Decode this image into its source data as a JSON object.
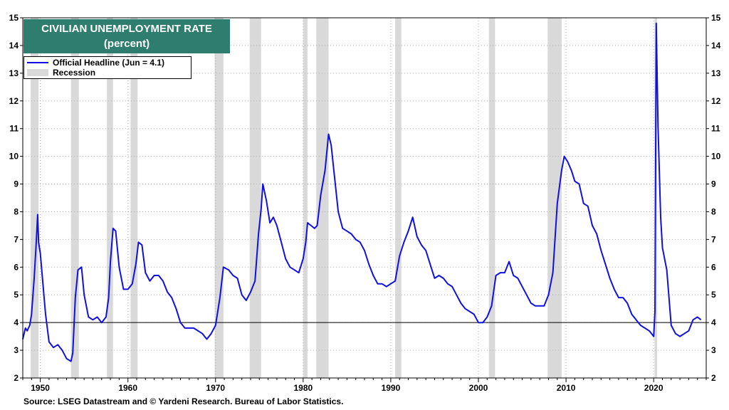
{
  "chart_data": {
    "type": "line",
    "title": "CIVILIAN UNEMPLOYMENT RATE",
    "subtitle": "(percent)",
    "source": "Source: LSEG Datastream and © Yardeni Research. Bureau of Labor Statistics.",
    "xlim": [
      1948,
      2026
    ],
    "ylim": [
      2,
      15
    ],
    "x_ticks": [
      1950,
      1960,
      1970,
      1980,
      1990,
      2000,
      2010,
      2020
    ],
    "y_ticks": [
      2,
      3,
      4,
      5,
      6,
      7,
      8,
      9,
      10,
      11,
      12,
      13,
      14,
      15
    ],
    "grid": true,
    "legend_position": "top-left",
    "reference_line": 4.0,
    "colors": {
      "series": "#1010e0",
      "recession": "#d9d9d9",
      "title_bg": "#2e7d6e",
      "reference": "#000000"
    },
    "series": [
      {
        "name": "Official Headline (Jun = 4.1)",
        "x": [
          1948.0,
          1948.3,
          1948.5,
          1948.8,
          1949.0,
          1949.3,
          1949.5,
          1949.7,
          1949.8,
          1950.0,
          1950.3,
          1950.6,
          1951.0,
          1951.5,
          1952.0,
          1952.5,
          1953.0,
          1953.5,
          1953.7,
          1954.0,
          1954.3,
          1954.7,
          1955.0,
          1955.5,
          1956.0,
          1956.5,
          1957.0,
          1957.5,
          1957.8,
          1958.0,
          1958.3,
          1958.6,
          1959.0,
          1959.5,
          1960.0,
          1960.5,
          1960.9,
          1961.2,
          1961.6,
          1962.0,
          1962.5,
          1963.0,
          1963.5,
          1964.0,
          1964.5,
          1965.0,
          1965.5,
          1966.0,
          1966.5,
          1967.0,
          1967.5,
          1968.0,
          1968.5,
          1969.0,
          1969.5,
          1970.0,
          1970.5,
          1970.9,
          1971.5,
          1972.0,
          1972.5,
          1973.0,
          1973.5,
          1974.0,
          1974.5,
          1974.9,
          1975.2,
          1975.4,
          1975.8,
          1976.2,
          1976.6,
          1977.0,
          1977.5,
          1978.0,
          1978.5,
          1979.0,
          1979.5,
          1980.0,
          1980.3,
          1980.5,
          1980.9,
          1981.3,
          1981.6,
          1982.0,
          1982.5,
          1982.9,
          1983.2,
          1983.5,
          1984.0,
          1984.5,
          1985.0,
          1985.5,
          1986.0,
          1986.5,
          1987.0,
          1987.5,
          1988.0,
          1988.5,
          1989.0,
          1989.5,
          1990.0,
          1990.5,
          1991.0,
          1991.5,
          1992.0,
          1992.5,
          1993.0,
          1993.5,
          1994.0,
          1994.5,
          1995.0,
          1995.5,
          1996.0,
          1996.5,
          1997.0,
          1997.5,
          1998.0,
          1998.5,
          1999.0,
          1999.5,
          2000.0,
          2000.5,
          2001.0,
          2001.5,
          2002.0,
          2002.5,
          2003.0,
          2003.5,
          2004.0,
          2004.5,
          2005.0,
          2005.5,
          2006.0,
          2006.5,
          2007.0,
          2007.5,
          2008.0,
          2008.5,
          2009.0,
          2009.5,
          2009.8,
          2010.2,
          2010.6,
          2011.0,
          2011.5,
          2012.0,
          2012.5,
          2013.0,
          2013.5,
          2014.0,
          2014.5,
          2015.0,
          2015.5,
          2016.0,
          2016.5,
          2017.0,
          2017.5,
          2018.0,
          2018.5,
          2019.0,
          2019.5,
          2020.0,
          2020.15,
          2020.3,
          2020.5,
          2020.8,
          2021.0,
          2021.5,
          2022.0,
          2022.5,
          2023.0,
          2023.5,
          2024.0,
          2024.5,
          2025.0,
          2025.4
        ],
        "values": [
          3.4,
          3.8,
          3.7,
          3.9,
          4.3,
          5.6,
          6.7,
          7.9,
          6.9,
          6.5,
          5.4,
          4.3,
          3.3,
          3.1,
          3.2,
          3.0,
          2.7,
          2.6,
          2.9,
          4.9,
          5.9,
          6.0,
          5.0,
          4.2,
          4.1,
          4.2,
          4.0,
          4.2,
          4.9,
          6.2,
          7.4,
          7.3,
          6.0,
          5.2,
          5.2,
          5.4,
          6.1,
          6.9,
          6.8,
          5.8,
          5.5,
          5.7,
          5.7,
          5.5,
          5.1,
          4.9,
          4.5,
          4.0,
          3.8,
          3.8,
          3.8,
          3.7,
          3.6,
          3.4,
          3.6,
          3.9,
          4.9,
          6.0,
          5.9,
          5.7,
          5.6,
          5.0,
          4.8,
          5.1,
          5.5,
          7.2,
          8.1,
          9.0,
          8.4,
          7.6,
          7.8,
          7.5,
          6.9,
          6.3,
          6.0,
          5.9,
          5.8,
          6.3,
          6.9,
          7.6,
          7.5,
          7.4,
          7.5,
          8.6,
          9.5,
          10.8,
          10.4,
          9.5,
          8.0,
          7.4,
          7.3,
          7.2,
          7.0,
          6.9,
          6.6,
          6.1,
          5.7,
          5.4,
          5.4,
          5.3,
          5.4,
          5.5,
          6.4,
          6.9,
          7.3,
          7.8,
          7.1,
          6.8,
          6.6,
          6.1,
          5.6,
          5.7,
          5.6,
          5.4,
          5.3,
          5.0,
          4.7,
          4.5,
          4.4,
          4.3,
          4.0,
          4.0,
          4.2,
          4.6,
          5.7,
          5.8,
          5.8,
          6.2,
          5.7,
          5.6,
          5.3,
          5.0,
          4.7,
          4.6,
          4.6,
          4.6,
          5.0,
          5.8,
          8.3,
          9.5,
          10.0,
          9.8,
          9.5,
          9.1,
          9.0,
          8.3,
          8.2,
          7.5,
          7.2,
          6.6,
          6.1,
          5.6,
          5.2,
          4.9,
          4.9,
          4.7,
          4.3,
          4.1,
          3.9,
          3.8,
          3.7,
          3.5,
          4.4,
          14.8,
          11.1,
          7.8,
          6.7,
          5.9,
          3.9,
          3.6,
          3.5,
          3.6,
          3.7,
          4.1,
          4.2,
          4.1
        ]
      }
    ],
    "recessions": [
      [
        1948.9,
        1949.8
      ],
      [
        1953.5,
        1954.4
      ],
      [
        1957.6,
        1958.3
      ],
      [
        1960.3,
        1961.1
      ],
      [
        1969.9,
        1970.9
      ],
      [
        1973.9,
        1975.2
      ],
      [
        1980.0,
        1980.5
      ],
      [
        1981.5,
        1982.9
      ],
      [
        1990.5,
        1991.2
      ],
      [
        2001.2,
        2001.9
      ],
      [
        2007.9,
        2009.5
      ],
      [
        2020.1,
        2020.4
      ]
    ],
    "legend": [
      {
        "label": "Official Headline (Jun = 4.1)",
        "kind": "line"
      },
      {
        "label": "Recession",
        "kind": "box"
      }
    ]
  }
}
